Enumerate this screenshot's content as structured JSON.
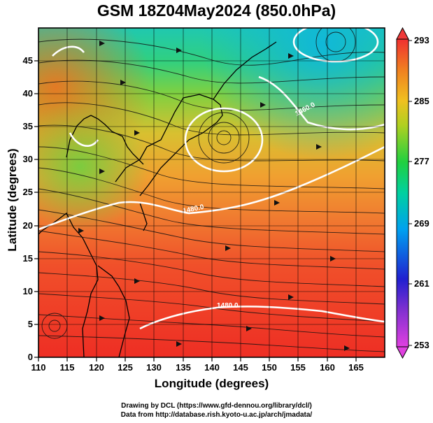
{
  "title": "GSM 18Z04May2024 (850.0hPa)",
  "x_axis_label": "Longitude (degrees)",
  "y_axis_label": "Latitude  (degrees)",
  "x_ticks": [
    "110",
    "115",
    "120",
    "125",
    "130",
    "135",
    "140",
    "145",
    "150",
    "155",
    "160",
    "165"
  ],
  "y_ticks": [
    "0",
    "5",
    "10",
    "15",
    "20",
    "25",
    "30",
    "35",
    "40",
    "45"
  ],
  "colorbar": {
    "ticks": [
      "253",
      "261",
      "269",
      "277",
      "285",
      "293"
    ],
    "colors": [
      "#e040e0",
      "#2020d0",
      "#00a0f0",
      "#20d060",
      "#f0d020",
      "#f03030"
    ]
  },
  "contour_labels": [
    "1460.0",
    "1480.0",
    "1480.0"
  ],
  "credits": {
    "line1": "Drawing by DCL (https://www.gfd-dennou.org/library/dcl/)",
    "line2": "Data from http://database.rish.kyoto-u.ac.jp/arch/jmadata/"
  },
  "chart_data": {
    "type": "heatmap",
    "title": "GSM 18Z04May2024 (850.0hPa)",
    "xlabel": "Longitude (degrees)",
    "ylabel": "Latitude  (degrees)",
    "xlim": [
      110,
      170
    ],
    "ylim": [
      0,
      50
    ],
    "colorbar_range": [
      253,
      293
    ],
    "colorbar_ticks": [
      253,
      261,
      269,
      277,
      285,
      293
    ],
    "contour_labels": [
      "1460.0",
      "1480.0",
      "1480.0"
    ],
    "grid": "on"
  }
}
